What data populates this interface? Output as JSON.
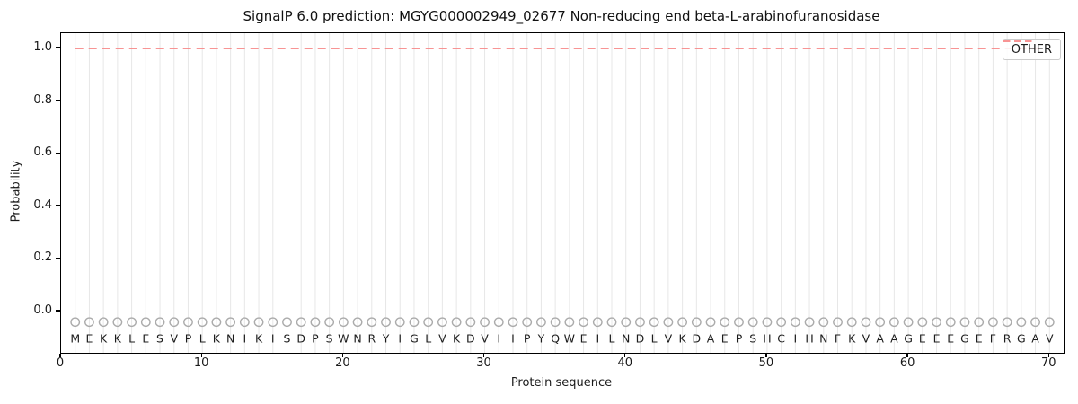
{
  "figure": {
    "title": "SignalP 6.0 prediction: MGYG000002949_02677 Non-reducing end beta-L-arabinofuranosidase",
    "xlabel": "Protein sequence",
    "ylabel": "Probability"
  },
  "legend": {
    "position": "upper right",
    "entries": [
      {
        "label": "OTHER",
        "color": "#f88585",
        "line_style": "dashed"
      }
    ]
  },
  "chart_data": {
    "type": "line",
    "title": "SignalP 6.0 prediction: MGYG000002949_02677 Non-reducing end beta-L-arabinofuranosidase",
    "xlabel": "Protein sequence",
    "ylabel": "Probability",
    "xlim": [
      0,
      71
    ],
    "ylim": [
      -0.157,
      1.058
    ],
    "x_ticks": [
      0,
      10,
      20,
      30,
      40,
      50,
      60,
      70
    ],
    "y_ticks": [
      0.0,
      0.2,
      0.4,
      0.6,
      0.8,
      1.0
    ],
    "grid": {
      "vertical_per_residue": true,
      "color": "#e7e7e7"
    },
    "legend_position": "upper right",
    "sequence": "MEKKLESVPLKNIKISDPSWNRYIGLVKDVIIPYQWEILNDLVKDAEPSHCIHNFKVAAGEEEGEFRGAV",
    "residue_markers": {
      "shape": "open-circle",
      "color": "#ababab",
      "y": -0.04
    },
    "series": [
      {
        "name": "OTHER",
        "color": "#f88585",
        "style": "dashed",
        "x": [
          1,
          2,
          3,
          4,
          5,
          6,
          7,
          8,
          9,
          10,
          11,
          12,
          13,
          14,
          15,
          16,
          17,
          18,
          19,
          20,
          21,
          22,
          23,
          24,
          25,
          26,
          27,
          28,
          29,
          30,
          31,
          32,
          33,
          34,
          35,
          36,
          37,
          38,
          39,
          40,
          41,
          42,
          43,
          44,
          45,
          46,
          47,
          48,
          49,
          50,
          51,
          52,
          53,
          54,
          55,
          56,
          57,
          58,
          59,
          60,
          61,
          62,
          63,
          64,
          65,
          66,
          67,
          68,
          69,
          70
        ],
        "y": [
          1.0,
          1.0,
          1.0,
          1.0,
          1.0,
          1.0,
          1.0,
          1.0,
          1.0,
          1.0,
          1.0,
          1.0,
          1.0,
          1.0,
          1.0,
          1.0,
          1.0,
          1.0,
          1.0,
          1.0,
          1.0,
          1.0,
          1.0,
          1.0,
          1.0,
          1.0,
          1.0,
          1.0,
          1.0,
          1.0,
          1.0,
          1.0,
          1.0,
          1.0,
          1.0,
          1.0,
          1.0,
          1.0,
          1.0,
          1.0,
          1.0,
          1.0,
          1.0,
          1.0,
          1.0,
          1.0,
          1.0,
          1.0,
          1.0,
          1.0,
          1.0,
          1.0,
          1.0,
          1.0,
          1.0,
          1.0,
          1.0,
          1.0,
          1.0,
          1.0,
          1.0,
          1.0,
          1.0,
          1.0,
          1.0,
          1.0,
          1.0,
          1.0,
          1.0,
          1.0
        ]
      }
    ]
  }
}
